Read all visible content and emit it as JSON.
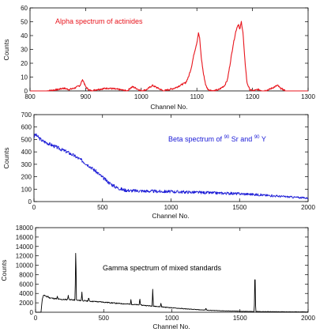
{
  "chart_data": [
    {
      "type": "line",
      "title": "Alpha spectrum of actinides",
      "xlabel": "Channel No.",
      "ylabel": "Counts",
      "xlim": [
        800,
        1300
      ],
      "ylim": [
        0,
        60
      ],
      "xticks": [
        "800",
        "900",
        "1000",
        "1100",
        "1200",
        "1300"
      ],
      "yticks": [
        "0",
        "10",
        "20",
        "30",
        "40",
        "50",
        "60"
      ],
      "color": "#e8141c",
      "series": [
        {
          "x": [
            800,
            830,
            850,
            860,
            870,
            880,
            885,
            890,
            893,
            895,
            897,
            900,
            905,
            910,
            920,
            940,
            960,
            975,
            980,
            985,
            990,
            995,
            1000,
            1010,
            1020,
            1030,
            1040,
            1050,
            1060,
            1070,
            1080,
            1085,
            1090,
            1095,
            1100,
            1103,
            1105,
            1108,
            1112,
            1116,
            1120,
            1130,
            1140,
            1150,
            1155,
            1160,
            1165,
            1170,
            1173,
            1175,
            1177,
            1180,
            1183,
            1186,
            1190,
            1195,
            1200,
            1210,
            1220,
            1230,
            1240,
            1245,
            1250,
            1260,
            1280,
            1300
          ],
          "y": [
            0,
            0,
            1,
            2,
            1,
            2,
            3,
            4,
            7,
            8,
            6,
            3,
            1,
            0,
            1,
            2,
            1,
            0,
            2,
            3,
            2,
            1,
            0,
            1,
            4,
            2,
            0,
            1,
            2,
            4,
            6,
            10,
            17,
            27,
            35,
            42,
            38,
            24,
            12,
            4,
            1,
            0,
            1,
            4,
            8,
            20,
            33,
            43,
            47,
            48,
            44,
            50,
            42,
            24,
            6,
            1,
            0,
            1,
            0,
            1,
            3,
            4,
            2,
            0,
            0,
            0
          ]
        }
      ]
    },
    {
      "type": "line",
      "title": "Beta spectrum of",
      "title_isotope1": "90",
      "title_element1": "Sr and",
      "title_isotope2": "90",
      "title_element2": "Y",
      "xlabel": "Channel No.",
      "ylabel": "Counts",
      "xlim": [
        0,
        2000
      ],
      "ylim": [
        0,
        700
      ],
      "xticks": [
        "0",
        "500",
        "1000",
        "1500",
        "2000"
      ],
      "yticks": [
        "0",
        "100",
        "200",
        "300",
        "400",
        "500",
        "600",
        "700"
      ],
      "color": "#1a1ad6",
      "series": [
        {
          "x": [
            0,
            10,
            30,
            60,
            100,
            150,
            200,
            250,
            300,
            350,
            400,
            450,
            500,
            550,
            600,
            650,
            700,
            800,
            900,
            1000,
            1100,
            1200,
            1300,
            1400,
            1500,
            1600,
            1700,
            1800,
            1900,
            2000
          ],
          "y": [
            520,
            540,
            520,
            490,
            470,
            445,
            420,
            395,
            365,
            330,
            290,
            245,
            195,
            150,
            115,
            95,
            88,
            85,
            82,
            80,
            77,
            74,
            70,
            67,
            63,
            58,
            50,
            42,
            35,
            28
          ]
        }
      ]
    },
    {
      "type": "line",
      "title": "Gamma spectrum of mixed standards",
      "xlabel": "Channel No.",
      "ylabel": "Counts",
      "xlim": [
        0,
        2000
      ],
      "ylim": [
        0,
        18000
      ],
      "xticks": [
        "0",
        "500",
        "1000",
        "1500",
        "2000"
      ],
      "yticks": [
        "0",
        "2000",
        "4000",
        "6000",
        "8000",
        "10000",
        "12000",
        "14000",
        "16000",
        "18000"
      ],
      "color": "#000000",
      "series": [
        {
          "x": [
            0,
            40,
            50,
            60,
            80,
            100,
            130,
            160,
            200,
            250,
            300,
            350,
            400,
            450,
            500,
            600,
            700,
            800,
            900,
            1000,
            1100,
            1200,
            1300,
            1400,
            1500,
            1600,
            1700,
            1800,
            1900,
            2000
          ],
          "y": [
            0,
            0,
            3000,
            3700,
            3300,
            3100,
            2950,
            2800,
            2700,
            2700,
            2550,
            2450,
            2350,
            2250,
            2150,
            1900,
            1700,
            1450,
            1200,
            950,
            720,
            520,
            380,
            280,
            200,
            150,
            120,
            100,
            80,
            60
          ],
          "peaks": [
            {
              "x": 90,
              "y": 3500
            },
            {
              "x": 160,
              "y": 3400
            },
            {
              "x": 240,
              "y": 3600
            },
            {
              "x": 295,
              "y": 14200
            },
            {
              "x": 340,
              "y": 4300
            },
            {
              "x": 390,
              "y": 3200
            },
            {
              "x": 700,
              "y": 2700
            },
            {
              "x": 765,
              "y": 3000
            },
            {
              "x": 860,
              "y": 4900
            },
            {
              "x": 920,
              "y": 1900
            },
            {
              "x": 1250,
              "y": 900
            },
            {
              "x": 1610,
              "y": 9600
            }
          ]
        }
      ]
    }
  ]
}
